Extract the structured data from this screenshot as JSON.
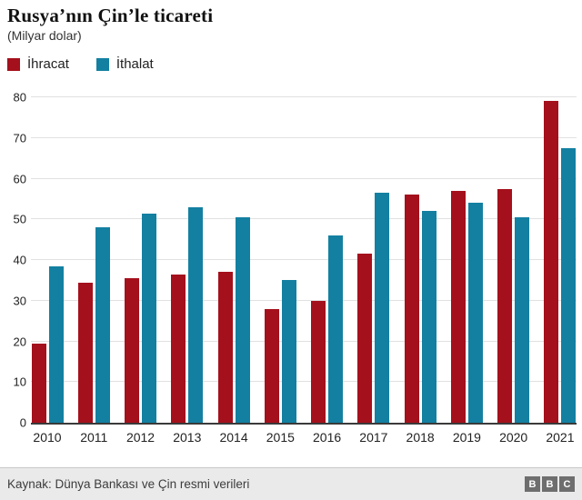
{
  "header": {
    "title": "Rusya’nın Çin’le ticareti",
    "subtitle": "(Milyar dolar)"
  },
  "chart_data": {
    "type": "bar",
    "title": "Rusya’nın Çin’le ticareti",
    "subtitle": "(Milyar dolar)",
    "categories": [
      "2010",
      "2011",
      "2012",
      "2013",
      "2014",
      "2015",
      "2016",
      "2017",
      "2018",
      "2019",
      "2020",
      "2021"
    ],
    "series": [
      {
        "name": "İhracat",
        "color": "#a4101c",
        "values": [
          19.5,
          34.5,
          35.5,
          36.5,
          37,
          28,
          30,
          41.5,
          56,
          57,
          57.5,
          79
        ]
      },
      {
        "name": "İthalat",
        "color": "#1380a1",
        "values": [
          38.5,
          48,
          51.5,
          53,
          50.5,
          35,
          46,
          56.5,
          52,
          54,
          50.5,
          67.5
        ]
      }
    ],
    "ylim": [
      0,
      80
    ],
    "yticks": [
      0,
      10,
      20,
      30,
      40,
      50,
      60,
      70,
      80
    ],
    "grid": true,
    "legend_position": "top-left",
    "xlabel": "",
    "ylabel": "(Milyar dolar)"
  },
  "colors": {
    "gridline": "#e1e1e1",
    "axis": "#3a3a3a"
  },
  "footer": {
    "source": "Kaynak: Dünya Bankası ve Çin resmi verileri",
    "logo_blocks": [
      "B",
      "B",
      "C"
    ]
  }
}
